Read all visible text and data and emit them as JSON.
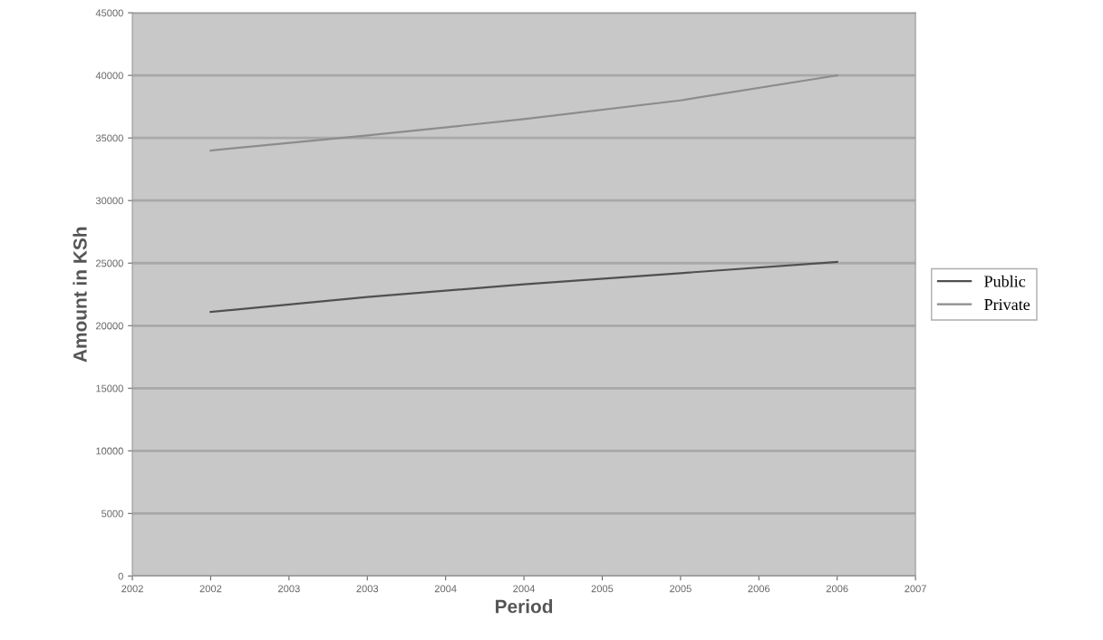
{
  "chart_data": {
    "type": "line",
    "xlabel": "Period",
    "ylabel": "Amount in KSh",
    "x": [
      2002.5,
      2003.5,
      2004.5,
      2005.5,
      2006.5
    ],
    "series": [
      {
        "name": "Public",
        "color": "#505050",
        "values": [
          21100,
          22300,
          23300,
          24200,
          25100
        ]
      },
      {
        "name": "Private",
        "color": "#8c8c8c",
        "values": [
          34000,
          35200,
          36500,
          38000,
          40000
        ]
      }
    ],
    "xlim": [
      2002,
      2007
    ],
    "xticks": [
      {
        "value": 2002,
        "label": "2002"
      },
      {
        "value": 2002.5,
        "label": "2002"
      },
      {
        "value": 2003,
        "label": "2003"
      },
      {
        "value": 2003.5,
        "label": "2003"
      },
      {
        "value": 2004,
        "label": "2004"
      },
      {
        "value": 2004.5,
        "label": "2004"
      },
      {
        "value": 2005,
        "label": "2005"
      },
      {
        "value": 2005.5,
        "label": "2005"
      },
      {
        "value": 2006,
        "label": "2006"
      },
      {
        "value": 2006.5,
        "label": "2006"
      },
      {
        "value": 2007,
        "label": "2007"
      }
    ],
    "ylim": [
      0,
      45000
    ],
    "yticks": [
      0,
      5000,
      10000,
      15000,
      20000,
      25000,
      30000,
      35000,
      40000,
      45000
    ],
    "grid": "y",
    "legend": "right",
    "marker": "none",
    "line_style": "solid"
  }
}
